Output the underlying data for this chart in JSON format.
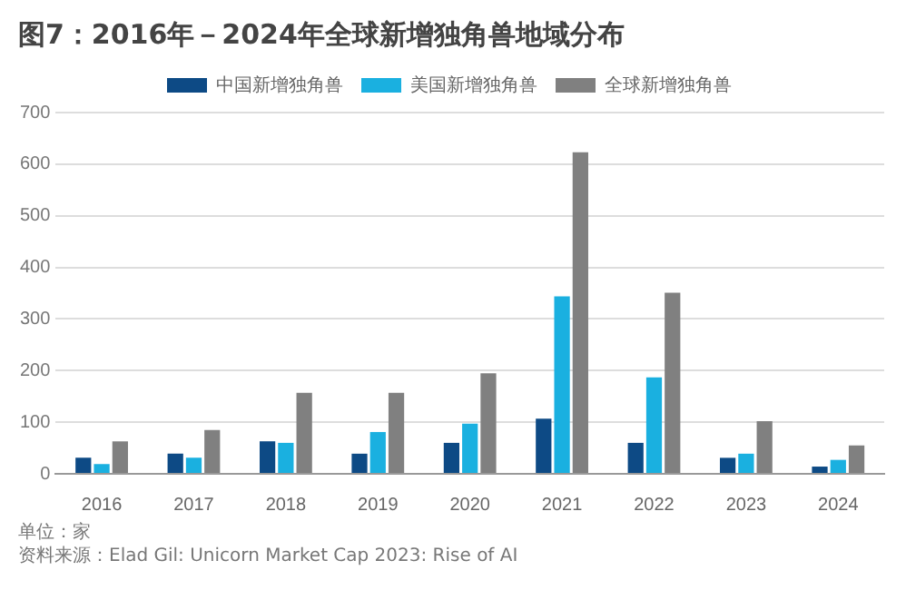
{
  "chart_data": {
    "type": "bar",
    "title": "图7：2016年－2024年全球新增独角兽地域分布",
    "categories": [
      "2016",
      "2017",
      "2018",
      "2019",
      "2020",
      "2021",
      "2022",
      "2023",
      "2024"
    ],
    "series": [
      {
        "name": "中国新增独角兽",
        "color": "#0d4a85",
        "values": [
          31,
          39,
          63,
          39,
          60,
          107,
          60,
          31,
          14
        ]
      },
      {
        "name": "美国新增独角兽",
        "color": "#1ab0e0",
        "values": [
          19,
          31,
          60,
          81,
          97,
          344,
          187,
          39,
          27
        ]
      },
      {
        "name": "全球新增独角兽",
        "color": "#808080",
        "values": [
          63,
          85,
          157,
          157,
          195,
          623,
          351,
          102,
          55
        ]
      }
    ],
    "ylim": [
      0,
      700
    ],
    "yticks": [
      0,
      100,
      200,
      300,
      400,
      500,
      600,
      700
    ],
    "grid": "y",
    "legend": "top",
    "annotations": [
      "单位：家",
      "资料来源：Elad Gil: Unicorn Market Cap 2023: Rise of AI"
    ]
  }
}
